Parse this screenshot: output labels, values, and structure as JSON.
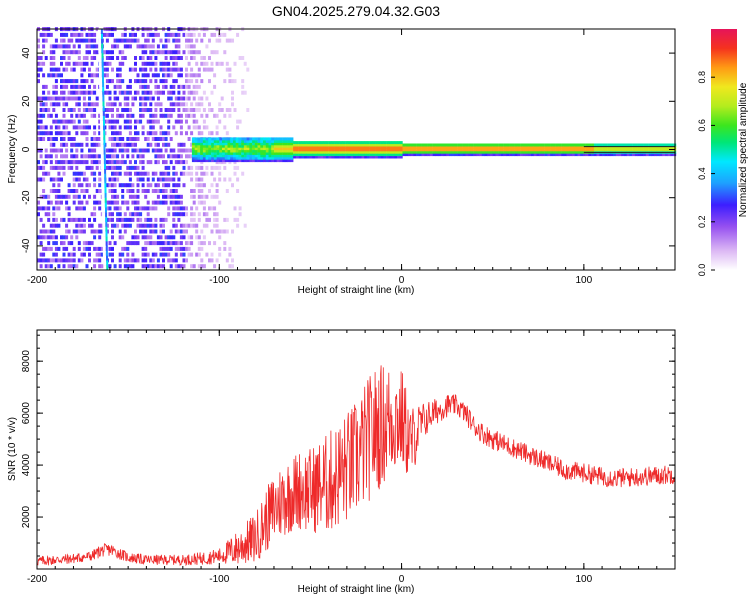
{
  "title": "GN04.2025.279.04.32.G03",
  "colors": {
    "snr_line": "#ee2a2a",
    "axis": "#000000",
    "background": "#ffffff"
  },
  "chart_data": [
    {
      "type": "heatmap",
      "title": "GN04.2025.279.04.32.G03",
      "xlabel": "Height of straight line (km)",
      "ylabel": "Frequency (Hz)",
      "xlim": [
        -200,
        150
      ],
      "ylim": [
        -50,
        50
      ],
      "xticks": [
        -200,
        -100,
        0,
        100
      ],
      "yticks": [
        -40,
        -20,
        0,
        20,
        40
      ],
      "xtick_labels": [
        "-200",
        "-100",
        "0",
        "100"
      ],
      "ytick_labels": [
        "-40",
        "-20",
        "0",
        "20",
        "40"
      ],
      "features": {
        "noise_region_x": [
          -200,
          -85
        ],
        "satellite_streak_x_at_top": -165,
        "satellite_streak_x_at_bottom": -162,
        "signal_band_center_hz": 0,
        "signal_band_start_x": -115,
        "strongest_x": [
          -60,
          105
        ]
      },
      "colorbar": {
        "label": "Normalized spectral amplitude",
        "range": [
          0,
          1
        ],
        "ticks": [
          0.0,
          0.2,
          0.4,
          0.6,
          0.8
        ],
        "tick_labels": [
          "0.0",
          "0.2",
          "0.4",
          "0.6",
          "0.8"
        ]
      }
    },
    {
      "type": "line",
      "xlabel": "Height of straight line (km)",
      "ylabel": "SNR (10 * v/v)",
      "xlim": [
        -200,
        150
      ],
      "ylim": [
        0,
        9200
      ],
      "xticks": [
        -200,
        -100,
        0,
        100
      ],
      "yticks": [
        2000,
        4000,
        6000,
        8000
      ],
      "xtick_labels": [
        "-200",
        "-100",
        "0",
        "100"
      ],
      "ytick_labels": [
        "2000",
        "4000",
        "6000",
        "8000"
      ],
      "series": [
        {
          "name": "SNR",
          "x": [
            -200,
            -180,
            -170,
            -165,
            -160,
            -150,
            -140,
            -120,
            -110,
            -100,
            -90,
            -80,
            -75,
            -70,
            -65,
            -60,
            -55,
            -50,
            -45,
            -40,
            -35,
            -30,
            -25,
            -20,
            -15,
            -10,
            -5,
            0,
            5,
            10,
            15,
            20,
            25,
            30,
            35,
            40,
            45,
            50,
            60,
            70,
            80,
            90,
            100,
            110,
            120,
            130,
            140,
            150
          ],
          "values": [
            300,
            400,
            500,
            700,
            750,
            450,
            350,
            350,
            400,
            500,
            800,
            1200,
            1800,
            2300,
            2700,
            2900,
            3100,
            3000,
            3200,
            3300,
            3600,
            3900,
            4200,
            4800,
            5300,
            5600,
            5800,
            5800,
            4800,
            5500,
            5900,
            6100,
            6300,
            6300,
            6000,
            5500,
            5200,
            5000,
            4700,
            4400,
            4100,
            3800,
            3700,
            3550,
            3500,
            3550,
            3600,
            3650
          ],
          "spread": [
            200,
            200,
            200,
            250,
            250,
            200,
            200,
            200,
            250,
            300,
            700,
            1000,
            1200,
            1400,
            1500,
            1500,
            1600,
            1700,
            1800,
            2000,
            2100,
            2200,
            2300,
            2400,
            2500,
            2400,
            2200,
            2000,
            1500,
            900,
            600,
            500,
            450,
            400,
            400,
            400,
            400,
            400,
            380,
            380,
            380,
            380,
            380,
            380,
            380,
            380,
            380,
            380
          ]
        }
      ]
    }
  ]
}
